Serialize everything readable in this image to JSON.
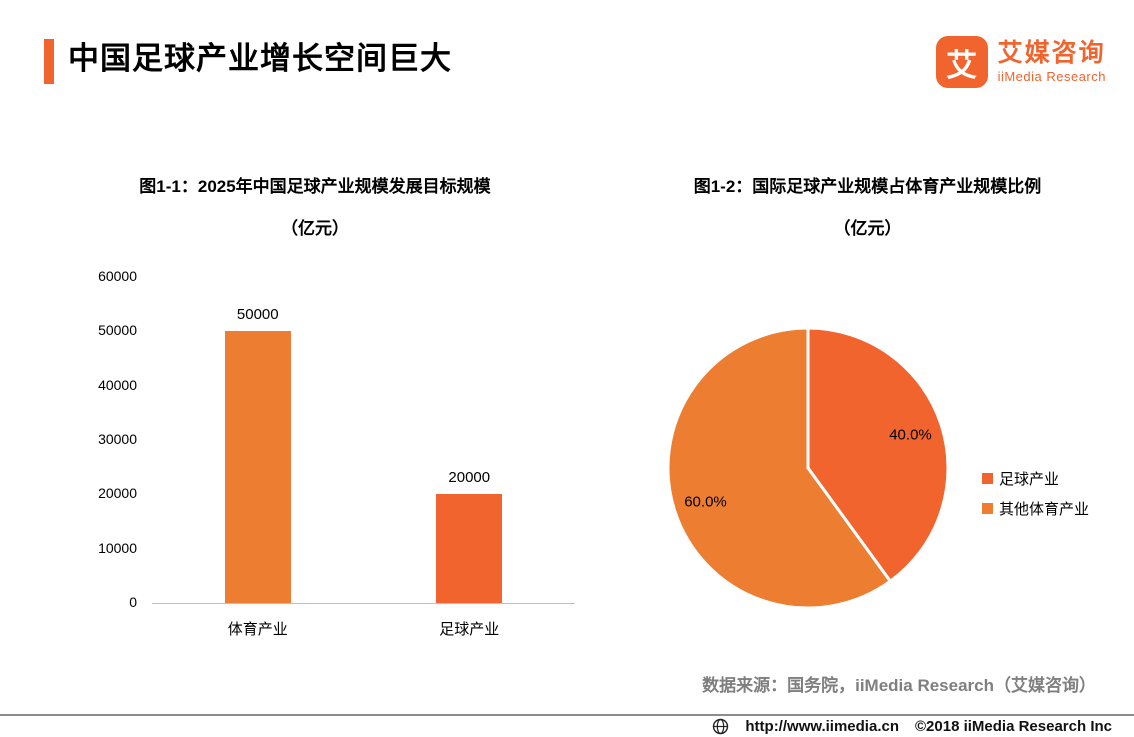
{
  "page": {
    "title": "中国足球产业增长空间巨大",
    "logo": {
      "glyph": "艾",
      "brand": "艾媒咨询",
      "sub": "iiMedia Research"
    },
    "source_note": "数据来源：国务院，iiMedia Research（艾媒咨询）",
    "footer": {
      "url": "http://www.iimedia.cn",
      "copyright": "©2018  iiMedia Research Inc"
    },
    "colors": {
      "accent": "#F1642E",
      "brand": "#F1642E"
    }
  },
  "chart_data": [
    {
      "type": "bar",
      "title": "图1-1：2025年中国足球产业规模发展目标规模",
      "subtitle": "（亿元）",
      "categories": [
        "体育产业",
        "足球产业"
      ],
      "values": [
        50000,
        20000
      ],
      "data_labels": [
        "50000",
        "20000"
      ],
      "colors": [
        "#ED7D31",
        "#F1642E"
      ],
      "ylim": [
        0,
        60000
      ],
      "yticks": [
        0,
        10000,
        20000,
        30000,
        40000,
        50000,
        60000
      ],
      "grid": false,
      "legend_position": "none"
    },
    {
      "type": "pie",
      "title": "图1-2：国际足球产业规模占体育产业规模比例",
      "subtitle": "（亿元）",
      "slices": [
        {
          "label": "足球产业",
          "value": 40.0,
          "display": "40.0%",
          "color": "#F1642E"
        },
        {
          "label": "其他体育产业",
          "value": 60.0,
          "display": "60.0%",
          "color": "#ED7D31"
        }
      ],
      "start_angle": "top",
      "direction": "clockwise",
      "legend_position": "right"
    }
  ]
}
